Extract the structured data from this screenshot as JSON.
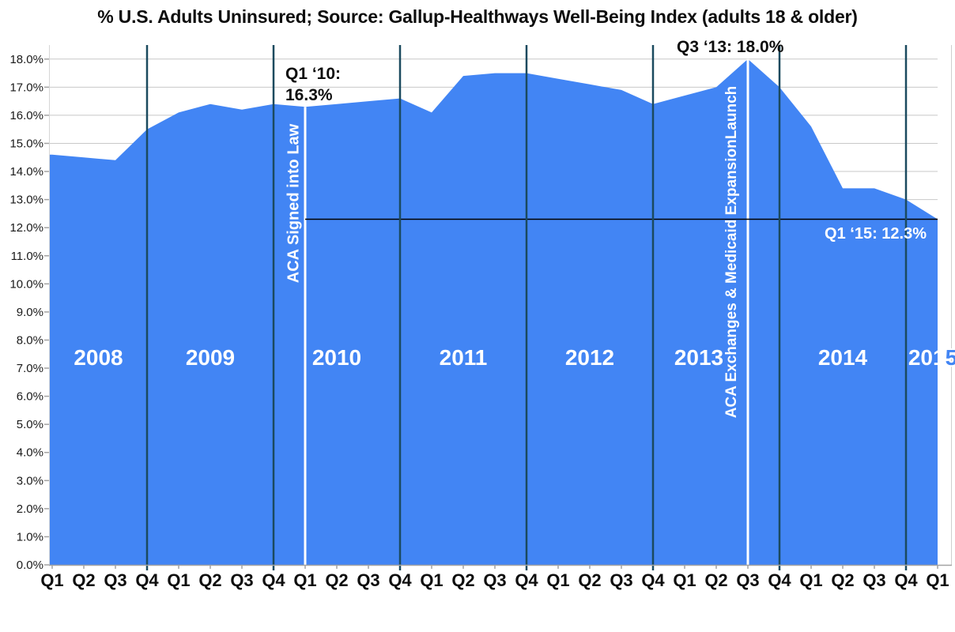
{
  "title": "% U.S. Adults Uninsured; Source: Gallup-Healthways Well-Being Index (adults 18 & older)",
  "chart_data": {
    "type": "area",
    "title": "% U.S. Adults Uninsured; Source: Gallup-Healthways Well-Being Index (adults 18 & older)",
    "xlabel": "",
    "ylabel": "",
    "ylim": [
      0,
      18.5
    ],
    "grid": true,
    "legend": "none",
    "x_tick_labels": [
      "Q1",
      "Q2",
      "Q3",
      "Q4",
      "Q1",
      "Q2",
      "Q3",
      "Q4",
      "Q1",
      "Q2",
      "Q3",
      "Q4",
      "Q1",
      "Q2",
      "Q3",
      "Q4",
      "Q1",
      "Q2",
      "Q3",
      "Q4",
      "Q1",
      "Q2",
      "Q3",
      "Q4",
      "Q1",
      "Q2",
      "Q3",
      "Q4",
      "Q1"
    ],
    "y_tick_labels": [
      "0.0%",
      "1.0%",
      "2.0%",
      "3.0%",
      "4.0%",
      "5.0%",
      "6.0%",
      "7.0%",
      "8.0%",
      "9.0%",
      "10.0%",
      "11.0%",
      "12.0%",
      "13.0%",
      "14.0%",
      "15.0%",
      "16.0%",
      "17.0%",
      "18.0%"
    ],
    "series": [
      {
        "name": "% U.S. Adults Uninsured",
        "values": [
          14.6,
          14.5,
          14.4,
          15.5,
          16.1,
          16.4,
          16.2,
          16.4,
          16.3,
          16.4,
          16.5,
          16.6,
          16.1,
          17.4,
          17.5,
          17.5,
          17.3,
          17.1,
          16.9,
          16.4,
          16.7,
          17.0,
          18.0,
          17.0,
          15.6,
          13.4,
          13.4,
          13.0,
          12.3
        ]
      }
    ],
    "years": [
      "2008",
      "2009",
      "2010",
      "2011",
      "2012",
      "2013",
      "2014"
    ],
    "year_2015": {
      "prefix": "201",
      "suffix": "5"
    },
    "year_line_indices": [
      3,
      7,
      11,
      15,
      19,
      23,
      27
    ],
    "event_lines": [
      {
        "index": 8,
        "label": "ACA Signed into Law"
      },
      {
        "index": 22,
        "label": "ACA Exchanges & Medicaid ExpansionLaunch"
      }
    ],
    "reference_line": {
      "value": 12.3,
      "from_index": 8
    },
    "annotations": {
      "q1_10_line1": "Q1 ‘10:",
      "q1_10_line2": "16.3%",
      "q3_13": "Q3 ‘13: 18.0%",
      "q1_15": "Q1 ‘15: 12.3%"
    },
    "colors": {
      "area": "#4285F4",
      "year_line": "#1B4A5F",
      "event_line": "#FFFFFF",
      "reference_line": "#000000",
      "gridline": "#C8C8C8",
      "axis": "#A3A3A3",
      "tick_text": "#0d0d0d",
      "year_text": "#FFFFFF"
    }
  }
}
